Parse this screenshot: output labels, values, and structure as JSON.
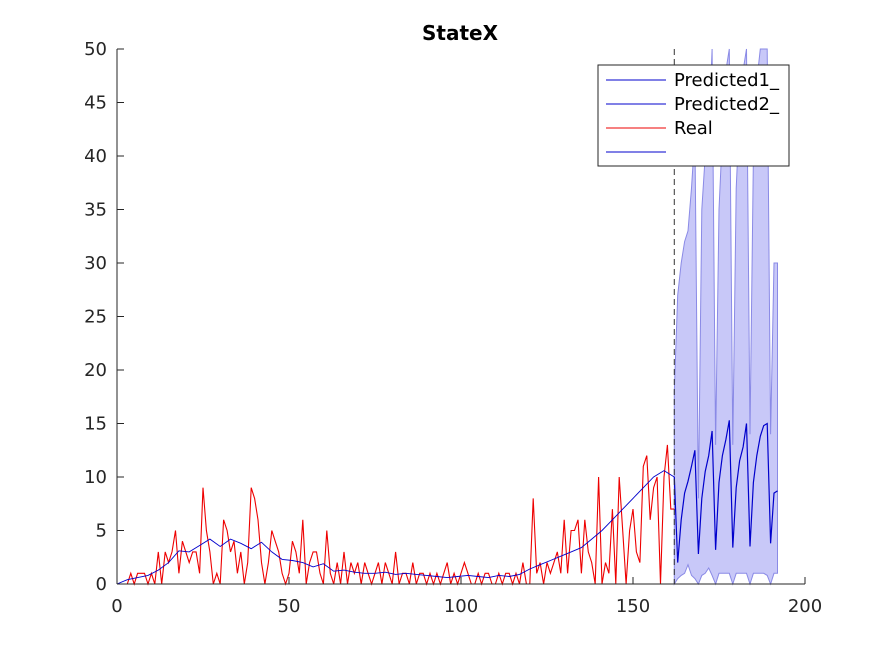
{
  "chart_data": {
    "type": "line",
    "title": "StateX",
    "xlabel": "",
    "ylabel": "",
    "xlim": [
      0,
      200
    ],
    "ylim": [
      0,
      50
    ],
    "xticks": [
      0,
      50,
      100,
      150,
      200
    ],
    "yticks": [
      0,
      5,
      10,
      15,
      20,
      25,
      30,
      35,
      40,
      45,
      50
    ],
    "grid": false,
    "legend_position": "top-right",
    "split_x": 162,
    "colors": {
      "predicted": "#0000cc",
      "real": "#ee0000",
      "band_fill": "#c8c8f8",
      "band_edge": "#8a8ae6",
      "axis": "#262626",
      "split_line": "#333333"
    },
    "legend": [
      "Predicted1_",
      "Predicted2_",
      "Real",
      ""
    ],
    "series": [
      {
        "name": "Real",
        "x": [
          0,
          1,
          2,
          3,
          4,
          5,
          6,
          7,
          8,
          9,
          10,
          11,
          12,
          13,
          14,
          15,
          16,
          17,
          18,
          19,
          20,
          21,
          22,
          23,
          24,
          25,
          26,
          27,
          28,
          29,
          30,
          31,
          32,
          33,
          34,
          35,
          36,
          37,
          38,
          39,
          40,
          41,
          42,
          43,
          44,
          45,
          46,
          47,
          48,
          49,
          50,
          51,
          52,
          53,
          54,
          55,
          56,
          57,
          58,
          59,
          60,
          61,
          62,
          63,
          64,
          65,
          66,
          67,
          68,
          69,
          70,
          71,
          72,
          73,
          74,
          75,
          76,
          77,
          78,
          79,
          80,
          81,
          82,
          83,
          84,
          85,
          86,
          87,
          88,
          89,
          90,
          91,
          92,
          93,
          94,
          95,
          96,
          97,
          98,
          99,
          100,
          101,
          102,
          103,
          104,
          105,
          106,
          107,
          108,
          109,
          110,
          111,
          112,
          113,
          114,
          115,
          116,
          117,
          118,
          119,
          120,
          121,
          122,
          123,
          124,
          125,
          126,
          127,
          128,
          129,
          130,
          131,
          132,
          133,
          134,
          135,
          136,
          137,
          138,
          139,
          140,
          141,
          142,
          143,
          144,
          145,
          146,
          147,
          148,
          149,
          150,
          151,
          152,
          153,
          154,
          155,
          156,
          157,
          158,
          159,
          160,
          161,
          162
        ],
        "y": [
          0,
          0,
          0,
          0,
          1,
          0,
          1,
          1,
          1,
          0,
          1,
          0,
          3,
          0,
          3,
          2,
          3,
          5,
          1,
          4,
          3,
          2,
          3,
          3,
          1,
          9,
          5,
          3,
          0,
          1,
          0,
          6,
          5,
          3,
          4,
          1,
          3,
          0,
          2,
          9,
          8,
          6,
          2,
          0,
          2,
          5,
          4,
          3,
          1,
          0,
          1,
          4,
          3,
          1,
          6,
          0,
          2,
          3,
          3,
          1,
          0,
          5,
          1,
          0,
          2,
          0,
          3,
          0,
          2,
          1,
          2,
          0,
          2,
          1,
          0,
          1,
          2,
          0,
          2,
          1,
          0,
          3,
          0,
          1,
          1,
          0,
          2,
          0,
          1,
          1,
          0,
          1,
          0,
          1,
          0,
          1,
          2,
          0,
          1,
          0,
          1,
          2,
          1,
          0,
          0,
          1,
          0,
          1,
          1,
          0,
          0,
          1,
          0,
          1,
          1,
          0,
          1,
          0,
          2,
          0,
          0,
          8,
          1,
          2,
          0,
          2,
          1,
          2,
          3,
          1,
          6,
          1,
          5,
          5,
          6,
          1,
          6,
          3,
          2,
          0,
          10,
          0,
          2,
          1,
          7,
          0,
          10,
          5,
          0,
          5,
          7,
          3,
          2,
          11,
          12,
          6,
          9,
          10,
          0,
          10,
          13,
          7,
          7
        ]
      },
      {
        "name": "Predicted1_",
        "x": [
          0,
          3,
          6,
          9,
          12,
          15,
          18,
          21,
          24,
          27,
          30,
          33,
          36,
          39,
          42,
          45,
          48,
          51,
          54,
          57,
          60,
          63,
          66,
          69,
          72,
          75,
          78,
          81,
          84,
          87,
          90,
          93,
          96,
          99,
          102,
          105,
          108,
          111,
          114,
          117,
          120,
          123,
          126,
          129,
          132,
          135,
          138,
          141,
          144,
          147,
          150,
          153,
          156,
          159,
          162
        ],
        "y": [
          0,
          0.4,
          0.6,
          0.8,
          1.3,
          2.0,
          3.1,
          3.0,
          3.6,
          4.2,
          3.5,
          4.2,
          3.8,
          3.3,
          3.9,
          3.0,
          2.3,
          2.2,
          2.0,
          1.6,
          1.9,
          1.2,
          1.3,
          1.1,
          1.0,
          1.0,
          1.1,
          0.9,
          1.0,
          0.9,
          0.8,
          0.7,
          0.6,
          0.7,
          0.8,
          0.7,
          0.6,
          0.8,
          0.7,
          0.9,
          1.4,
          1.8,
          2.2,
          2.6,
          3.0,
          3.4,
          4.2,
          5.0,
          6.0,
          7.0,
          8.0,
          9.0,
          10.0,
          10.6,
          10.0
        ]
      },
      {
        "name": "Predicted2_",
        "x": [
          162,
          163,
          164,
          165,
          166,
          167,
          168,
          169,
          170,
          171,
          172,
          173,
          174,
          175,
          176,
          177,
          178,
          179,
          180,
          181,
          182,
          183,
          184,
          185,
          186,
          187,
          188,
          189,
          190,
          191,
          192
        ],
        "y": [
          10,
          2.0,
          6.0,
          8.5,
          9.6,
          11.0,
          12.5,
          2.8,
          8.0,
          10.5,
          12.0,
          14.3,
          3.2,
          9.5,
          12.0,
          13.5,
          15.3,
          3.4,
          9.0,
          11.5,
          12.8,
          15.0,
          3.5,
          9.5,
          12.0,
          13.8,
          14.8,
          15.0,
          3.8,
          8.5,
          8.7
        ]
      }
    ],
    "band": {
      "x": [
        162,
        163,
        164,
        165,
        166,
        167,
        168,
        169,
        170,
        171,
        172,
        173,
        174,
        175,
        176,
        177,
        178,
        179,
        180,
        181,
        182,
        183,
        184,
        185,
        186,
        187,
        188,
        189,
        190,
        191,
        192
      ],
      "upper": [
        18,
        27,
        30,
        32,
        33,
        37,
        42,
        8,
        35,
        40,
        42,
        50,
        13,
        35,
        42,
        48,
        50,
        13,
        37,
        44,
        48,
        50,
        14,
        40,
        47,
        50,
        50,
        50,
        14,
        30,
        30
      ],
      "lower": [
        0,
        0.5,
        0.8,
        1.0,
        1.8,
        0.8,
        0.5,
        0,
        0.8,
        1.0,
        1.5,
        0.8,
        0,
        1.0,
        1.0,
        1.0,
        1.0,
        0,
        1.0,
        1.0,
        1.0,
        1.0,
        0,
        1.0,
        1.0,
        1.0,
        1.0,
        0.8,
        0,
        1.0,
        1.0
      ]
    }
  }
}
